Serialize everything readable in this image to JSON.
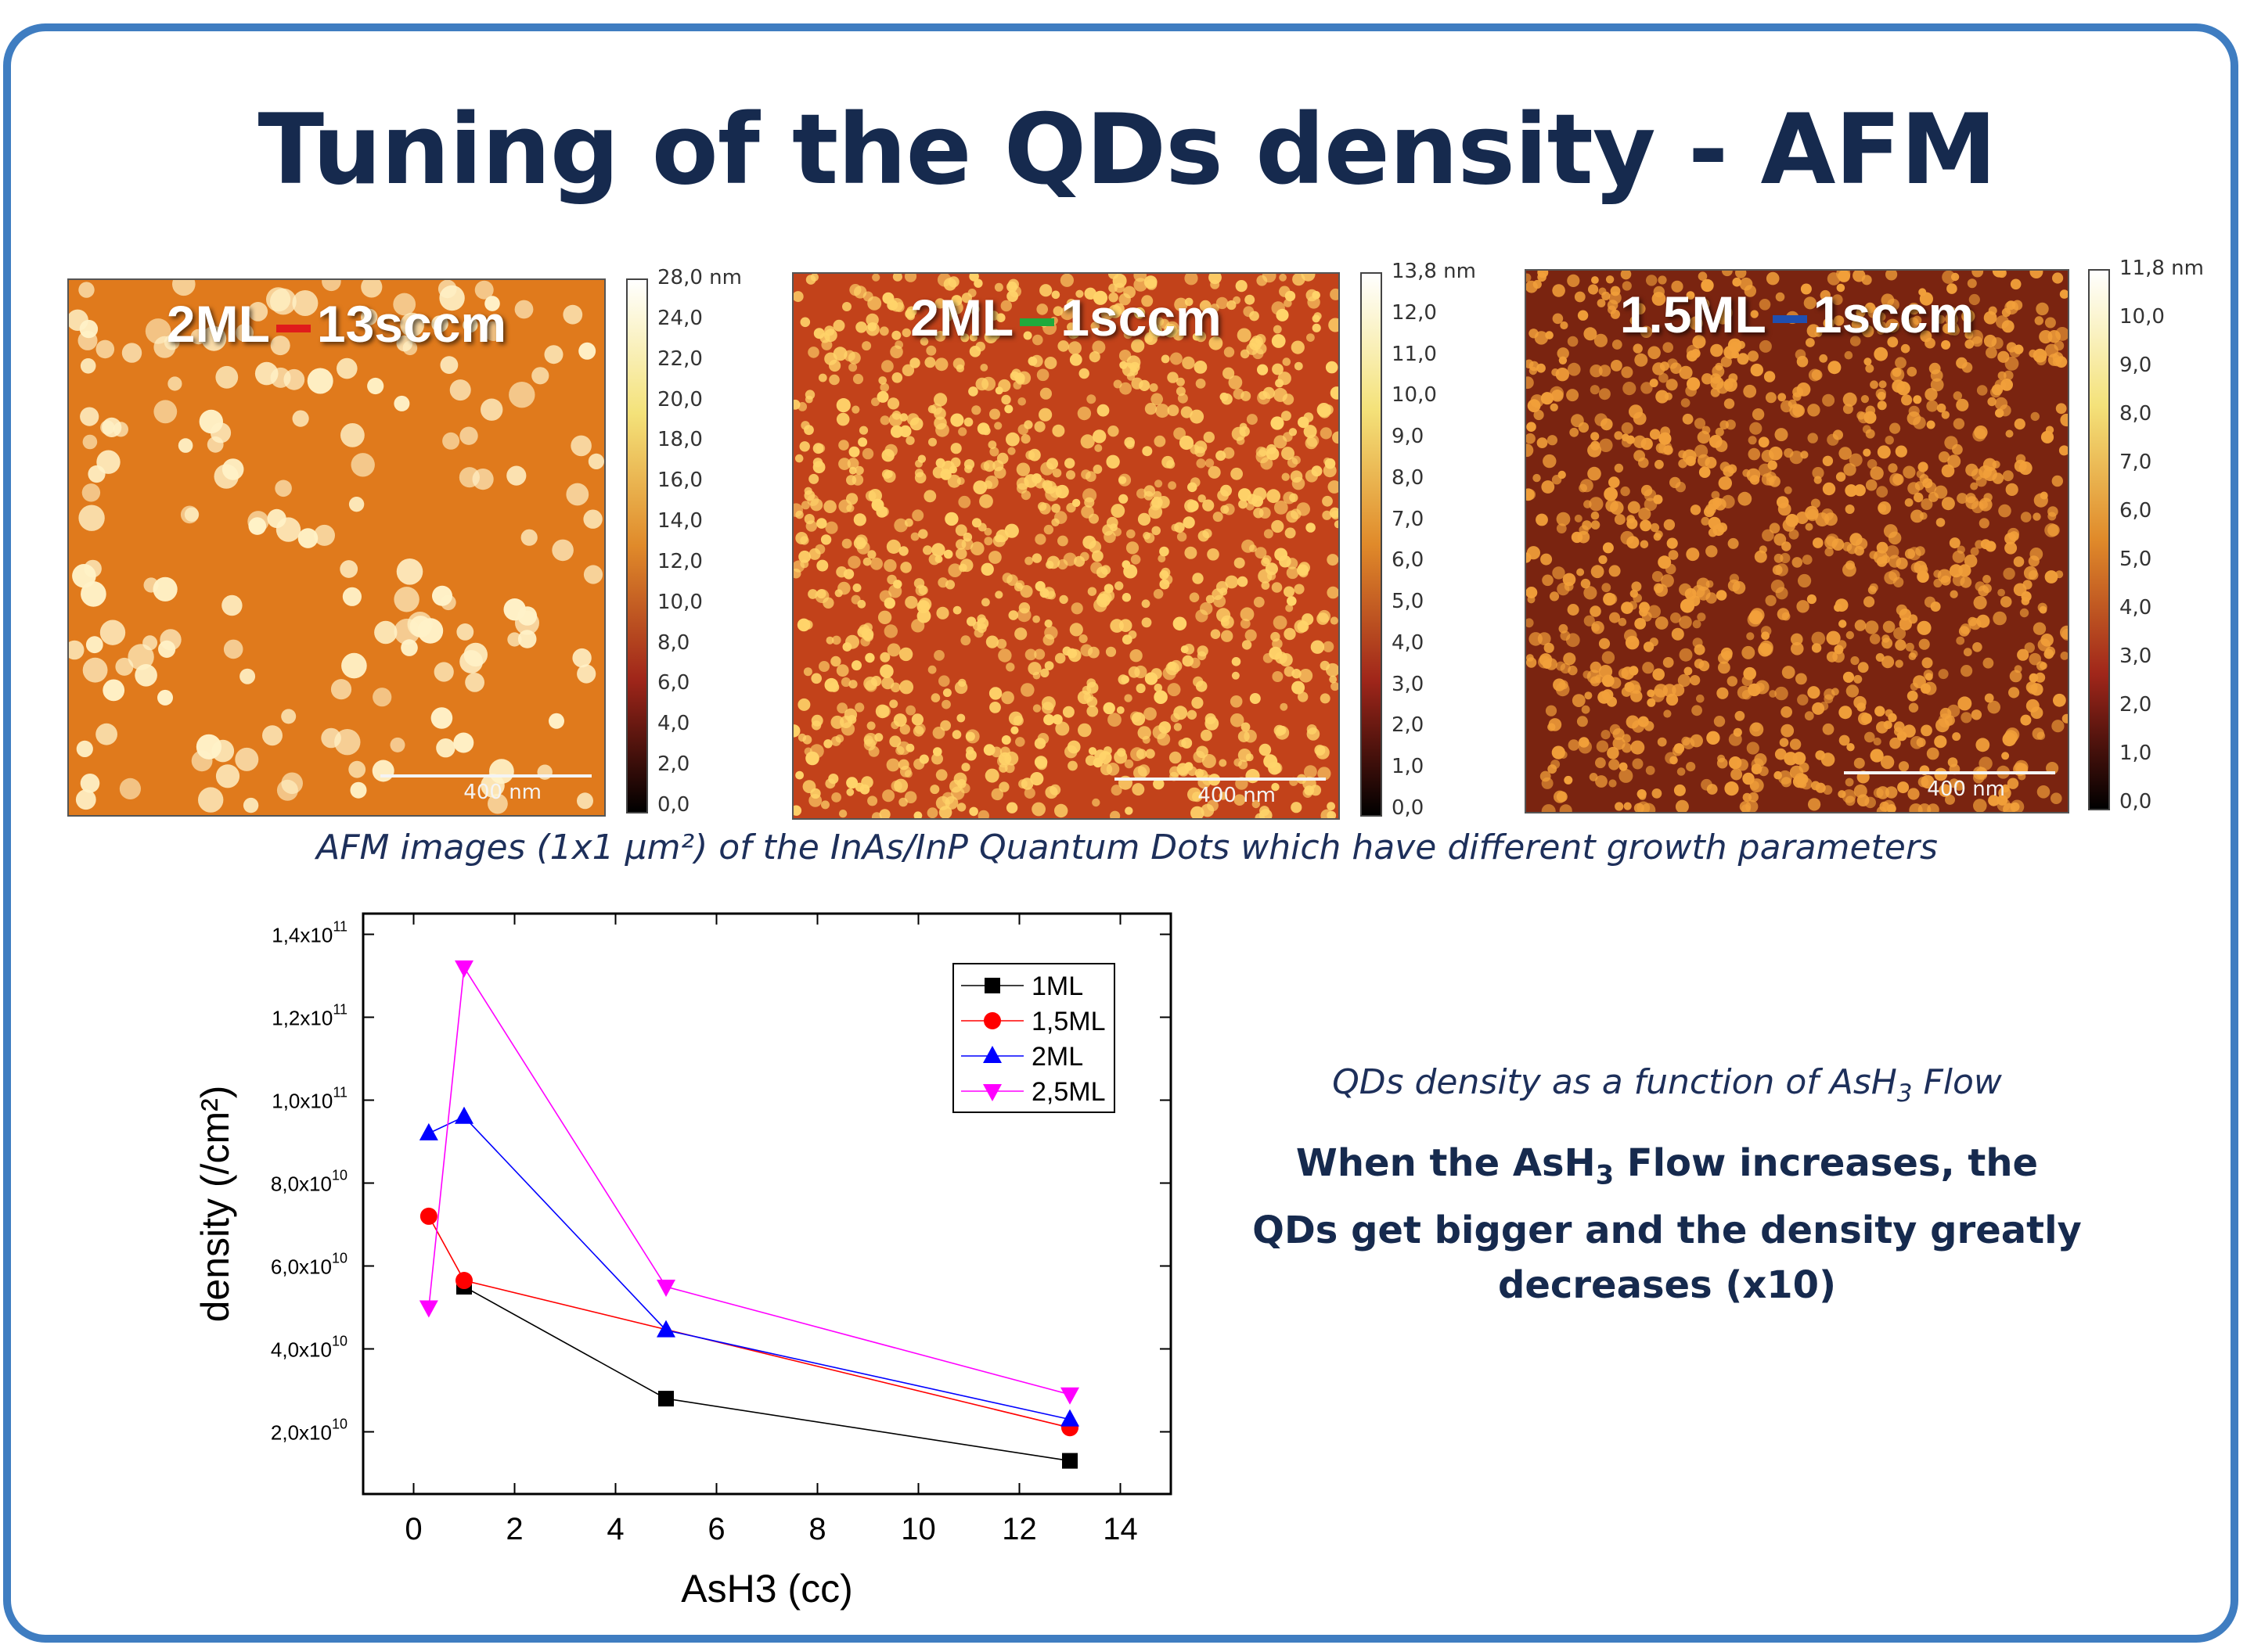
{
  "slide": {
    "title": "Tuning of the QDs density - AFM",
    "caption": "AFM images (1x1 µm²) of the InAs/InP Quantum Dots which have different growth parameters",
    "right_subtitle_pre": "QDs density as a function of AsH",
    "right_subtitle_sub": "3",
    "right_subtitle_post": " Flow",
    "right_main_pre": "When the AsH",
    "right_main_sub": "3",
    "right_main_post": " Flow increases, the QDs get bigger and the density greatly decreases (x10)"
  },
  "afm_images": [
    {
      "label_left": "2ML",
      "label_right": "13sccm",
      "dash_color": "#e01b1b",
      "scale_label": "400 nm",
      "colorbar_ticks": [
        "28,0 nm",
        "24,0",
        "22,0",
        "20,0",
        "18,0",
        "16,0",
        "14,0",
        "12,0",
        "10,0",
        "8,0",
        "6,0",
        "4,0",
        "2,0",
        "0,0"
      ],
      "base_color": "#e07a1c",
      "dot_color": "#fff2c8",
      "dot_density": "sparse"
    },
    {
      "label_left": "2ML",
      "label_right": "1sccm",
      "dash_color": "#1faa3c",
      "scale_label": "400 nm",
      "colorbar_ticks": [
        "13,8 nm",
        "12,0",
        "11,0",
        "10,0",
        "9,0",
        "8,0",
        "7,0",
        "6,0",
        "5,0",
        "4,0",
        "3,0",
        "2,0",
        "1,0",
        "0,0"
      ],
      "base_color": "#c2421a",
      "dot_color": "#ffd46a",
      "dot_density": "dense"
    },
    {
      "label_left": "1.5ML",
      "label_right": "1sccm",
      "dash_color": "#1f4fb0",
      "scale_label": "400 nm",
      "colorbar_ticks": [
        "11,8 nm",
        "10,0",
        "9,0",
        "8,0",
        "7,0",
        "6,0",
        "5,0",
        "4,0",
        "3,0",
        "2,0",
        "1,0",
        "0,0"
      ],
      "base_color": "#7a2410",
      "dot_color": "#f2a03a",
      "dot_density": "dense"
    }
  ],
  "chart_data": {
    "type": "line",
    "xlabel": "AsH3 (cc)",
    "ylabel": "density (/cm²)",
    "xlim": [
      -1,
      15
    ],
    "ylim": [
      5000000000.0,
      145000000000.0
    ],
    "xticks": [
      0,
      2,
      4,
      6,
      8,
      10,
      12,
      14
    ],
    "yticks": [
      {
        "value": 20000000000.0,
        "mantissa": "2,0x10",
        "exp": "10"
      },
      {
        "value": 40000000000.0,
        "mantissa": "4,0x10",
        "exp": "10"
      },
      {
        "value": 60000000000.0,
        "mantissa": "6,0x10",
        "exp": "10"
      },
      {
        "value": 80000000000.0,
        "mantissa": "8,0x10",
        "exp": "10"
      },
      {
        "value": 100000000000.0,
        "mantissa": "1,0x10",
        "exp": "11"
      },
      {
        "value": 120000000000.0,
        "mantissa": "1,2x10",
        "exp": "11"
      },
      {
        "value": 140000000000.0,
        "mantissa": "1,4x10",
        "exp": "11"
      }
    ],
    "legend_position": "top-right",
    "grid": false,
    "series": [
      {
        "name": "1ML",
        "color": "#000000",
        "marker": "square",
        "x": [
          1,
          5,
          13
        ],
        "y": [
          55000000000.0,
          28000000000.0,
          13000000000.0
        ]
      },
      {
        "name": "1,5ML",
        "color": "#ff0000",
        "marker": "circle",
        "x": [
          0.3,
          1,
          13
        ],
        "y": [
          72000000000.0,
          56500000000.0,
          21000000000.0
        ]
      },
      {
        "name": "2ML",
        "color": "#0000ff",
        "marker": "triangle-up",
        "x": [
          0.3,
          1,
          5,
          13
        ],
        "y": [
          92000000000.0,
          96000000000.0,
          44500000000.0,
          23000000000.0
        ]
      },
      {
        "name": "2,5ML",
        "color": "#ff00ff",
        "marker": "triangle-down",
        "x": [
          0.3,
          1,
          5,
          13
        ],
        "y": [
          50000000000.0,
          132000000000.0,
          55000000000.0,
          29000000000.0
        ]
      }
    ]
  }
}
